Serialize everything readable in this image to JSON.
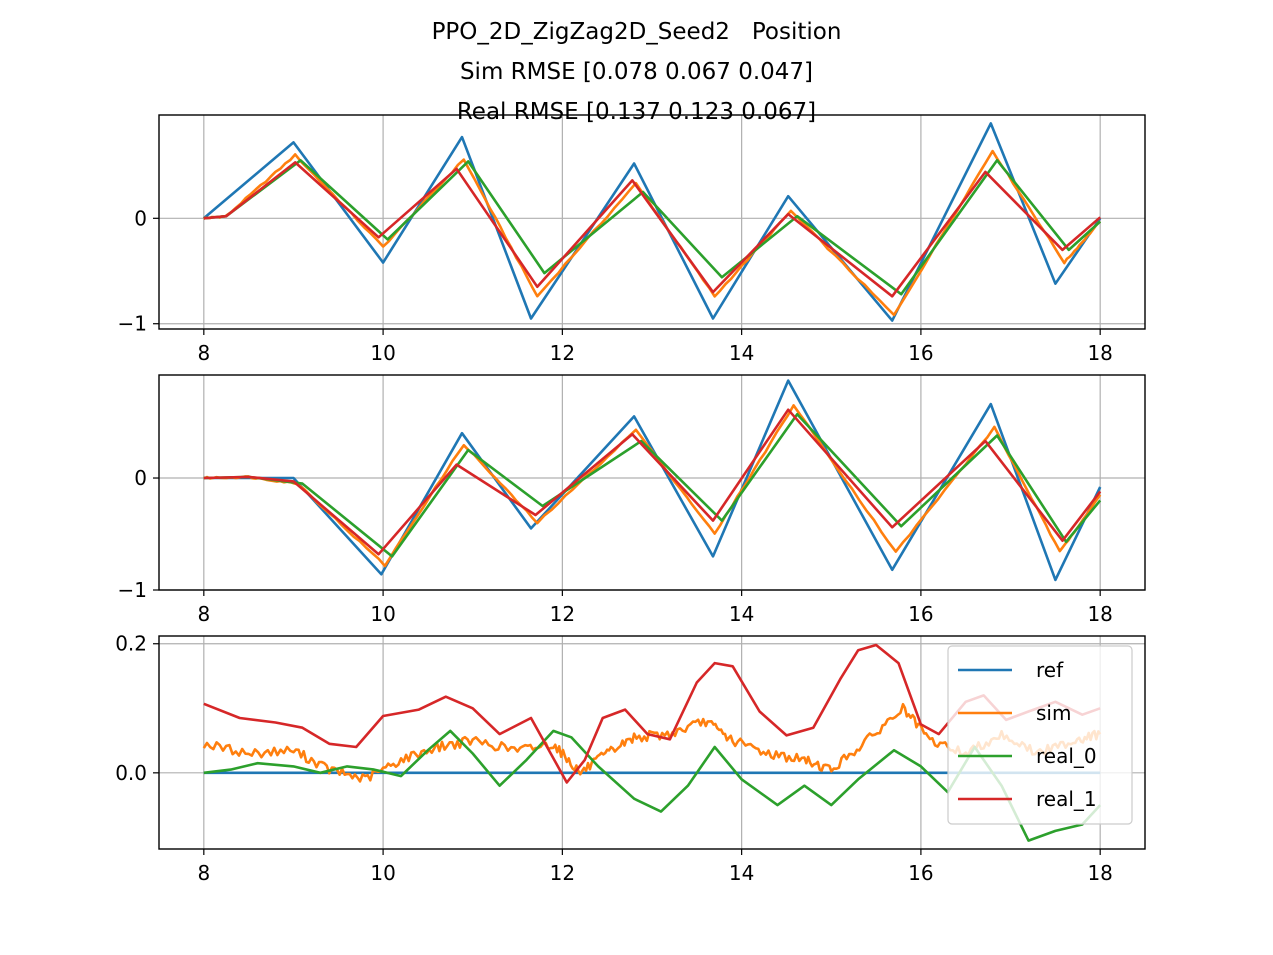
{
  "title": {
    "line1": "PPO_2D_ZigZag2D_Seed2   Position",
    "line2": "Sim RMSE [0.078 0.067 0.047]",
    "line3": "Real RMSE [0.137 0.123 0.067]"
  },
  "colors": {
    "ref": "#1f77b4",
    "sim": "#ff7f0e",
    "real_0": "#2ca02c",
    "real_1": "#d62728",
    "grid": "#b0b0b0"
  },
  "chart_data": [
    {
      "type": "line",
      "xlim": [
        7.5,
        18.5
      ],
      "ylim": [
        -1.05,
        0.98
      ],
      "xticks": [
        8,
        10,
        12,
        14,
        16,
        18
      ],
      "yticks": [
        -1,
        0
      ],
      "ytick_labels": [
        "−1",
        "0"
      ],
      "grid": true,
      "legend": false,
      "series": [
        {
          "name": "ref",
          "x": [
            8,
            9.0,
            10.0,
            10.88,
            11.65,
            12.8,
            13.68,
            14.52,
            15.68,
            16.78,
            17.5,
            18
          ],
          "y": [
            0,
            0.72,
            -0.42,
            0.77,
            -0.95,
            0.52,
            -0.95,
            0.21,
            -0.97,
            0.9,
            -0.62,
            0
          ]
        },
        {
          "name": "sim",
          "x": [
            8,
            8.25,
            9.02,
            10.0,
            10.9,
            11.72,
            12.82,
            13.7,
            14.55,
            15.7,
            16.8,
            17.6,
            18
          ],
          "y": [
            0,
            0.02,
            0.6,
            -0.27,
            0.56,
            -0.74,
            0.33,
            -0.74,
            0.07,
            -0.92,
            0.64,
            -0.42,
            -0.03
          ]
        },
        {
          "name": "real_0",
          "x": [
            8,
            8.25,
            9.08,
            10.05,
            10.95,
            11.8,
            12.9,
            13.78,
            14.62,
            15.78,
            16.85,
            17.65,
            18
          ],
          "y": [
            0,
            0.02,
            0.55,
            -0.2,
            0.54,
            -0.52,
            0.25,
            -0.56,
            0.02,
            -0.72,
            0.55,
            -0.3,
            -0.03
          ]
        },
        {
          "name": "real_1",
          "x": [
            8,
            8.25,
            9.02,
            9.95,
            10.82,
            11.72,
            12.78,
            13.68,
            14.52,
            15.68,
            16.72,
            17.58,
            18
          ],
          "y": [
            0,
            0.02,
            0.53,
            -0.18,
            0.47,
            -0.65,
            0.36,
            -0.7,
            0.04,
            -0.74,
            0.44,
            -0.3,
            0.01
          ]
        }
      ]
    },
    {
      "type": "line",
      "xlim": [
        7.5,
        18.5
      ],
      "ylim": [
        -1.0,
        0.92
      ],
      "xticks": [
        8,
        10,
        12,
        14,
        16,
        18
      ],
      "yticks": [
        -1,
        0
      ],
      "ytick_labels": [
        "−1",
        "0"
      ],
      "grid": true,
      "legend": false,
      "series": [
        {
          "name": "ref",
          "x": [
            8,
            9.0,
            9.98,
            10.88,
            11.65,
            12.8,
            13.68,
            14.52,
            15.68,
            16.78,
            17.5,
            18
          ],
          "y": [
            0,
            0,
            -0.86,
            0.4,
            -0.45,
            0.55,
            -0.7,
            0.87,
            -0.82,
            0.66,
            -0.91,
            -0.08
          ]
        },
        {
          "name": "sim",
          "x": [
            8,
            8.5,
            9.05,
            10.02,
            10.9,
            11.72,
            12.82,
            13.7,
            14.58,
            15.72,
            16.82,
            17.55,
            18
          ],
          "y": [
            0,
            0.01,
            -0.05,
            -0.78,
            0.3,
            -0.4,
            0.43,
            -0.5,
            0.65,
            -0.66,
            0.45,
            -0.66,
            -0.15
          ]
        },
        {
          "name": "real_0",
          "x": [
            8,
            8.5,
            9.1,
            10.1,
            10.95,
            11.78,
            12.88,
            13.78,
            14.62,
            15.78,
            16.85,
            17.62,
            18
          ],
          "y": [
            0,
            0.01,
            -0.05,
            -0.7,
            0.25,
            -0.25,
            0.33,
            -0.38,
            0.57,
            -0.43,
            0.38,
            -0.57,
            -0.2
          ]
        },
        {
          "name": "real_1",
          "x": [
            8,
            8.5,
            9.0,
            9.95,
            10.82,
            11.7,
            12.78,
            13.68,
            14.52,
            15.68,
            16.72,
            17.58,
            18
          ],
          "y": [
            0,
            0.01,
            -0.03,
            -0.68,
            0.12,
            -0.33,
            0.39,
            -0.38,
            0.61,
            -0.44,
            0.33,
            -0.56,
            -0.12
          ]
        }
      ]
    },
    {
      "type": "line",
      "xlim": [
        7.5,
        18.5
      ],
      "ylim": [
        -0.118,
        0.212
      ],
      "xticks": [
        8,
        10,
        12,
        14,
        16,
        18
      ],
      "yticks": [
        0.0,
        0.2
      ],
      "ytick_labels": [
        "0.0",
        "0.2"
      ],
      "grid": true,
      "legend": true,
      "legend_loc": "upper right",
      "series": [
        {
          "name": "ref",
          "x": [
            8,
            18
          ],
          "y": [
            0,
            0
          ]
        },
        {
          "name": "sim",
          "x": [
            8,
            8.5,
            9.0,
            9.4,
            9.8,
            10.2,
            10.6,
            11.0,
            11.5,
            11.9,
            12.2,
            12.5,
            12.8,
            13.2,
            13.6,
            13.9,
            14.3,
            14.7,
            15.0,
            15.4,
            15.8,
            16.1,
            16.5,
            16.9,
            17.3,
            17.7,
            18
          ],
          "y": [
            0.045,
            0.03,
            0.035,
            0.005,
            -0.01,
            0.02,
            0.04,
            0.05,
            0.035,
            0.045,
            0.0,
            0.03,
            0.055,
            0.06,
            0.08,
            0.05,
            0.03,
            0.02,
            0.005,
            0.05,
            0.1,
            0.05,
            0.03,
            0.06,
            0.03,
            0.05,
            0.06
          ]
        },
        {
          "name": "real_0",
          "x": [
            8,
            8.3,
            8.6,
            9.0,
            9.3,
            9.6,
            9.9,
            10.2,
            10.5,
            10.75,
            11.0,
            11.3,
            11.6,
            11.9,
            12.1,
            12.4,
            12.8,
            13.1,
            13.4,
            13.7,
            14.0,
            14.4,
            14.7,
            15.0,
            15.3,
            15.7,
            16.0,
            16.3,
            16.6,
            16.9,
            17.2,
            17.5,
            17.8,
            18
          ],
          "y": [
            0,
            0.005,
            0.015,
            0.01,
            0.0,
            0.01,
            0.005,
            -0.005,
            0.035,
            0.065,
            0.03,
            -0.02,
            0.02,
            0.065,
            0.055,
            0.01,
            -0.04,
            -0.06,
            -0.02,
            0.04,
            -0.01,
            -0.05,
            -0.02,
            -0.05,
            -0.01,
            0.035,
            0.01,
            -0.03,
            0.04,
            -0.02,
            -0.105,
            -0.09,
            -0.08,
            -0.05
          ]
        },
        {
          "name": "real_1",
          "x": [
            8,
            8.4,
            8.8,
            9.1,
            9.4,
            9.7,
            10.0,
            10.4,
            10.7,
            11.0,
            11.3,
            11.65,
            11.85,
            12.05,
            12.25,
            12.45,
            12.7,
            12.95,
            13.2,
            13.5,
            13.7,
            13.9,
            14.2,
            14.5,
            14.8,
            15.1,
            15.3,
            15.5,
            15.75,
            16.0,
            16.2,
            16.5,
            16.7,
            16.95,
            17.2,
            17.5,
            17.8,
            18
          ],
          "y": [
            0.107,
            0.085,
            0.078,
            0.07,
            0.045,
            0.04,
            0.088,
            0.098,
            0.118,
            0.1,
            0.06,
            0.085,
            0.035,
            -0.015,
            0.02,
            0.085,
            0.098,
            0.06,
            0.052,
            0.14,
            0.17,
            0.165,
            0.095,
            0.058,
            0.07,
            0.145,
            0.19,
            0.198,
            0.17,
            0.075,
            0.06,
            0.11,
            0.12,
            0.082,
            0.095,
            0.11,
            0.09,
            0.1
          ]
        }
      ]
    }
  ]
}
